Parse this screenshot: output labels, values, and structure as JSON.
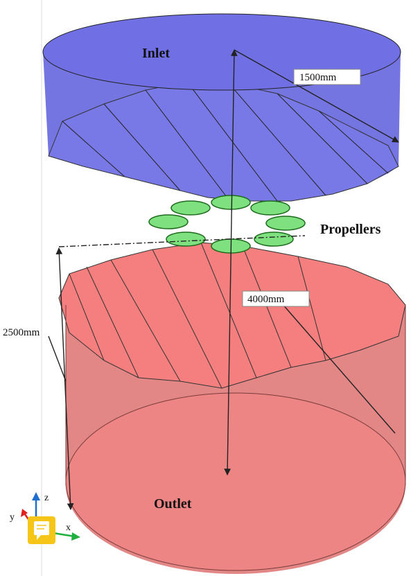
{
  "labels": {
    "inlet": "Inlet",
    "propellers": "Propellers",
    "outlet": "Outlet"
  },
  "dimensions": {
    "inlet_radius": "1500mm",
    "height": "4000mm",
    "outlet_height": "2500mm"
  },
  "axes": {
    "z": "z",
    "y": "y",
    "x": "x"
  }
}
